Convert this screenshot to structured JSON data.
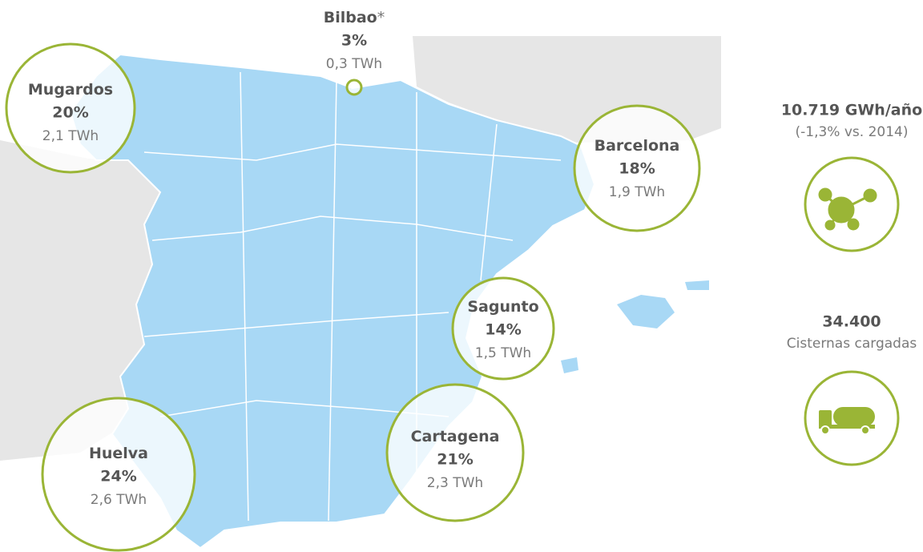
{
  "terminals": [
    {
      "name": "Mugardos",
      "share": "20%",
      "energy": "2,1 TWh"
    },
    {
      "name": "Bilbao",
      "mark": "*",
      "share": "3%",
      "energy": "0,3 TWh"
    },
    {
      "name": "Barcelona",
      "share": "18%",
      "energy": "1,9 TWh"
    },
    {
      "name": "Sagunto",
      "share": "14%",
      "energy": "1,5 TWh"
    },
    {
      "name": "Cartagena",
      "share": "21%",
      "energy": "2,3 TWh"
    },
    {
      "name": "Huelva",
      "share": "24%",
      "energy": "2,6 TWh"
    }
  ],
  "stats": [
    {
      "value": "10.719 GWh/año",
      "note": "(-1,3% vs. 2014)"
    },
    {
      "value": "34.400",
      "note": "Cisternas cargadas"
    }
  ]
}
